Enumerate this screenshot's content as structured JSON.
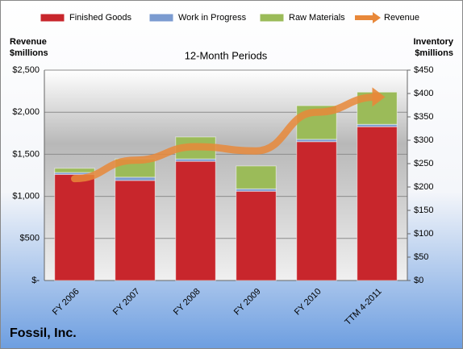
{
  "chart_data": {
    "type": "bar",
    "title": "12-Month Periods",
    "company": "Fossil, Inc.",
    "y_label": [
      "Revenue",
      "$millions"
    ],
    "y2_label": [
      "Inventory",
      "$millions"
    ],
    "categories": [
      "FY 2006",
      "FY 2007",
      "FY 2008",
      "FY 2009",
      "FY 2010",
      "TTM 4-2011"
    ],
    "series": [
      {
        "name": "Finished Goods",
        "color": "#c8262c",
        "axis": "y2",
        "stack": true,
        "values": [
          227,
          214,
          255,
          191,
          297,
          329
        ]
      },
      {
        "name": "Work in Progress",
        "color": "#7b9bd0",
        "axis": "y2",
        "stack": true,
        "values": [
          4,
          7,
          5,
          5,
          5,
          5
        ]
      },
      {
        "name": "Raw Materials",
        "color": "#9bbb59",
        "axis": "y2",
        "stack": true,
        "values": [
          9,
          39,
          47,
          49,
          72,
          69
        ]
      },
      {
        "name": "Revenue",
        "color": "#e8883a",
        "type": "line",
        "values": [
          1210,
          1430,
          1590,
          1540,
          2000,
          2180
        ]
      }
    ],
    "ylim": [
      0,
      2500
    ],
    "yticks": [
      {
        "value": 0,
        "label": "$-"
      },
      {
        "value": 500,
        "label": "$500"
      },
      {
        "value": 1000,
        "label": "$1,000"
      },
      {
        "value": 1500,
        "label": "$1,500"
      },
      {
        "value": 2000,
        "label": "$2,000"
      },
      {
        "value": 2500,
        "label": "$2,500"
      }
    ],
    "y2lim": [
      0,
      450
    ],
    "y2ticks": [
      {
        "value": 0,
        "label": "$0"
      },
      {
        "value": 50,
        "label": "$50"
      },
      {
        "value": 100,
        "label": "$100"
      },
      {
        "value": 150,
        "label": "$150"
      },
      {
        "value": 200,
        "label": "$200"
      },
      {
        "value": 250,
        "label": "$250"
      },
      {
        "value": 300,
        "label": "$300"
      },
      {
        "value": 350,
        "label": "$350"
      },
      {
        "value": 400,
        "label": "$400"
      },
      {
        "value": 450,
        "label": "$450"
      }
    ],
    "grid": true
  }
}
